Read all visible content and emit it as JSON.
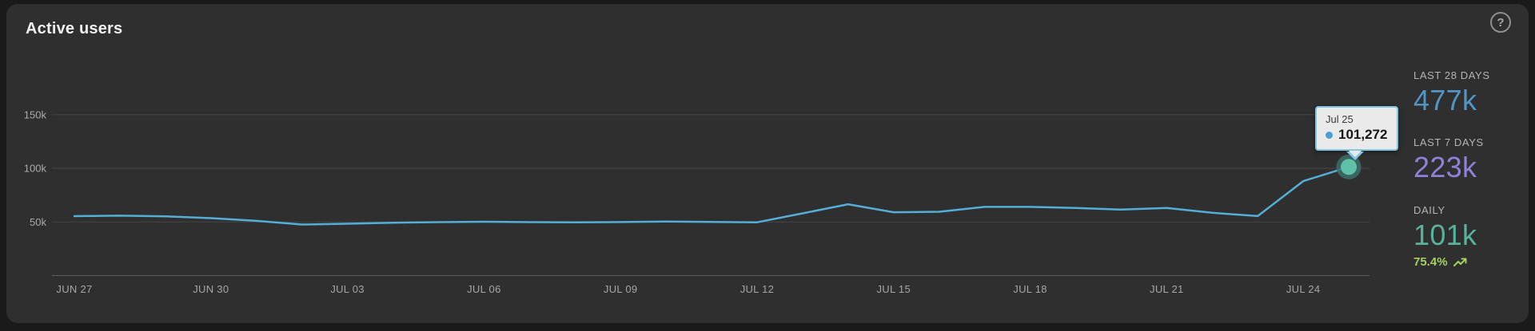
{
  "card": {
    "title": "Active users",
    "help_label": "?"
  },
  "chart_data": {
    "type": "line",
    "title": "Active users",
    "x": [
      "Jun 27",
      "Jun 28",
      "Jun 29",
      "Jun 30",
      "Jul 01",
      "Jul 02",
      "Jul 03",
      "Jul 04",
      "Jul 05",
      "Jul 06",
      "Jul 07",
      "Jul 08",
      "Jul 09",
      "Jul 10",
      "Jul 11",
      "Jul 12",
      "Jul 13",
      "Jul 14",
      "Jul 15",
      "Jul 16",
      "Jul 17",
      "Jul 18",
      "Jul 19",
      "Jul 20",
      "Jul 21",
      "Jul 22",
      "Jul 23",
      "Jul 24",
      "Jul 25"
    ],
    "values_thousands": [
      55.4,
      55.8,
      55.2,
      53.5,
      51.0,
      47.6,
      48.3,
      49.3,
      49.8,
      50.2,
      49.8,
      49.6,
      49.9,
      50.3,
      50.0,
      49.7,
      58.0,
      66.5,
      59.0,
      59.5,
      64.0,
      64.0,
      63.0,
      61.5,
      63.0,
      58.5,
      55.5,
      88.0,
      101.272
    ],
    "x_tick_labels": [
      "JUN 27",
      "JUN 30",
      "JUL 03",
      "JUL 06",
      "JUL 09",
      "JUL 12",
      "JUL 15",
      "JUL 18",
      "JUL 21",
      "JUL 24"
    ],
    "x_tick_every": 3,
    "y_ticks_thousands": [
      50,
      100,
      150
    ],
    "y_tick_labels": [
      "50k",
      "100k",
      "150k"
    ],
    "ylim_thousands": [
      0,
      160
    ],
    "grid": "horizontal",
    "legend": "none",
    "line_color": "#55aed6",
    "highlight_point": {
      "date": "Jul 25",
      "value_exact": 101272,
      "dot_color": "#5fc2a8",
      "halo_color": "rgba(60,110,104,0.85)"
    }
  },
  "tooltip": {
    "date": "Jul 25",
    "value": "101,272",
    "dot_color": "#4ba0d2"
  },
  "stats": [
    {
      "label": "LAST 28 DAYS",
      "value": "477k",
      "color": "#5295c5"
    },
    {
      "label": "LAST 7 DAYS",
      "value": "223k",
      "color": "#9180d8"
    },
    {
      "label": "DAILY",
      "value": "101k",
      "color": "#57b39c",
      "growth": "75.4%",
      "growth_color": "#a6d05f"
    }
  ]
}
